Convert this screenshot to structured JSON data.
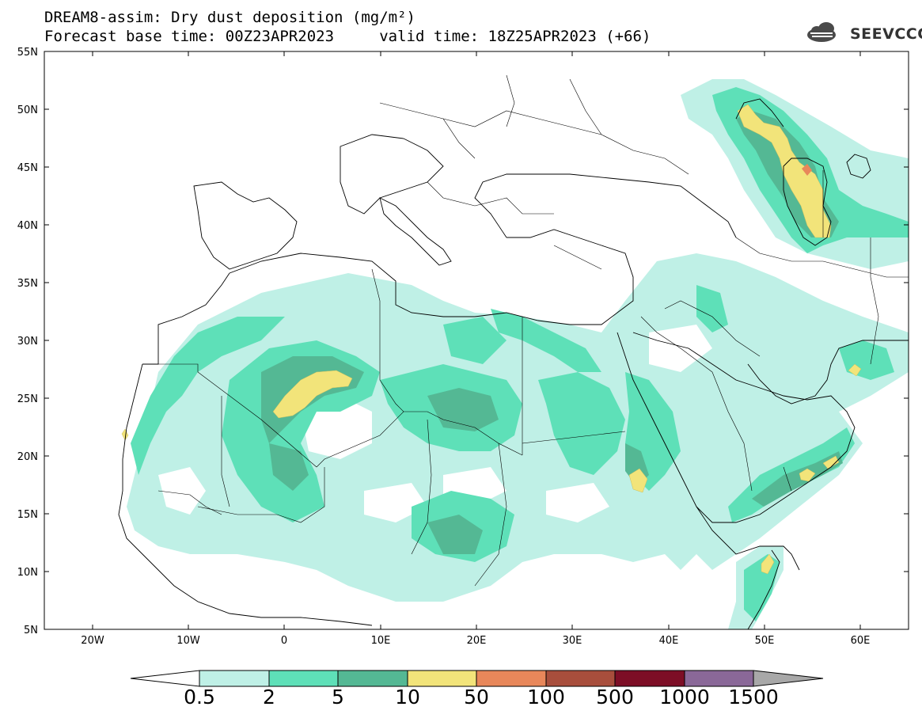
{
  "title_line1": "DREAM8-assim: Dry dust deposition (mg/m²)",
  "title_line2": "Forecast base time: 00Z23APR2023     valid time: 18Z25APR2023 (+66)",
  "logo_text": "SEEVCCC",
  "lat_labels": [
    "55N",
    "50N",
    "45N",
    "40N",
    "35N",
    "30N",
    "25N",
    "20N",
    "15N",
    "10N",
    "5N"
  ],
  "lon_labels": [
    "20W",
    "10W",
    "0",
    "10E",
    "20E",
    "30E",
    "40E",
    "50E",
    "60E"
  ],
  "colorbar": {
    "labels": [
      "0.5",
      "2",
      "5",
      "10",
      "50",
      "100",
      "500",
      "1000",
      "1500"
    ],
    "colors": [
      "#bff0e6",
      "#5ee0b8",
      "#54b894",
      "#f2e47a",
      "#e8875a",
      "#a84e3c",
      "#7d0e26",
      "#8a6898",
      "#a8a8a8"
    ]
  }
}
